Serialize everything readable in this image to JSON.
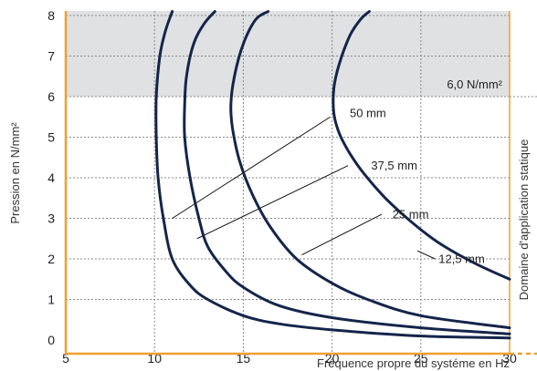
{
  "chart_data": {
    "type": "line",
    "xlabel": "Fréquence propre du systéme en Hz",
    "ylabel": "Pression en N/mm²",
    "xlim": [
      5,
      30
    ],
    "ylim": [
      0,
      8
    ],
    "x_ticks": [
      "5",
      "10",
      "15",
      "20",
      "25",
      "30"
    ],
    "y_ticks": [
      "0",
      "1",
      "2",
      "3",
      "4",
      "5",
      "6",
      "7",
      "8"
    ],
    "grid": true,
    "static_zone": {
      "label": "6,0 N/mm²",
      "from": 6,
      "to": 8
    },
    "side_label": "Domaine d'application statique",
    "series": [
      {
        "name": "50 mm",
        "label_at": [
          21,
          5.5
        ],
        "x": [
          30,
          25,
          20,
          17,
          15,
          13,
          12,
          11,
          10.5,
          10.2,
          10.1,
          10.1,
          10.3,
          10.6,
          11
        ],
        "y": [
          0.05,
          0.1,
          0.25,
          0.4,
          0.6,
          1,
          1.35,
          2,
          3,
          4,
          5,
          6,
          7,
          7.6,
          8.1
        ]
      },
      {
        "name": "37,5 mm",
        "label_at": [
          22.2,
          4.2
        ],
        "x": [
          30,
          25,
          20,
          17,
          15,
          14,
          13,
          12.5,
          12,
          11.7,
          11.7,
          11.8,
          12.2,
          12.8,
          13.4
        ],
        "y": [
          0.15,
          0.3,
          0.55,
          0.85,
          1.3,
          1.7,
          2.3,
          3,
          4,
          5,
          5.8,
          6.5,
          7.3,
          7.8,
          8.1
        ]
      },
      {
        "name": "25 mm",
        "label_at": [
          23.4,
          3.0
        ],
        "x": [
          30,
          25,
          22,
          20,
          18,
          16.5,
          15.5,
          14.8,
          14.4,
          14.3,
          14.5,
          15,
          15.7,
          16.4
        ],
        "y": [
          0.3,
          0.6,
          1,
          1.4,
          2,
          2.8,
          3.6,
          4.4,
          5.2,
          5.8,
          6.5,
          7.3,
          7.9,
          8.1
        ]
      },
      {
        "name": "12,5 mm",
        "label_at": [
          26,
          1.9
        ],
        "x": [
          30,
          28,
          26,
          24.5,
          23,
          21.8,
          21,
          20.4,
          20.1,
          20.1,
          20.4,
          21,
          21.6,
          22.1
        ],
        "y": [
          1.5,
          1.9,
          2.4,
          2.9,
          3.5,
          4.1,
          4.6,
          5.1,
          5.6,
          6.2,
          6.8,
          7.5,
          7.9,
          8.1
        ]
      }
    ],
    "leaders": [
      {
        "from": [
          11,
          3.0
        ],
        "to": [
          19.9,
          5.5
        ]
      },
      {
        "from": [
          12.4,
          2.5
        ],
        "to": [
          20.9,
          4.3
        ]
      },
      {
        "from": [
          18.3,
          2.1
        ],
        "to": [
          22.8,
          3.1
        ]
      },
      {
        "from": [
          24.8,
          2.2
        ],
        "to": [
          25.8,
          2.0
        ]
      }
    ],
    "colors": {
      "series": "#14254a",
      "axis": "#f0a030",
      "zone_fill": "#dfe1e3",
      "grid": "#8a8a8a"
    }
  }
}
